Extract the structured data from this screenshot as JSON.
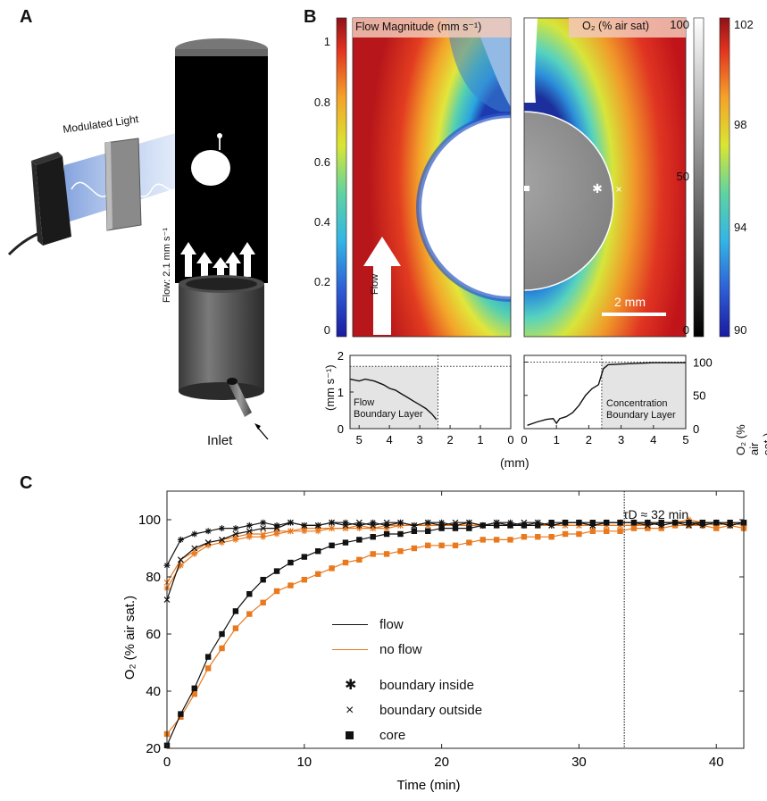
{
  "panel_a": {
    "letter": "A",
    "modulated_light_label": "Modulated Light",
    "flow_label": "Flow: 2.1 mm s⁻¹",
    "inlet_label": "Inlet"
  },
  "panel_b": {
    "letter": "B",
    "flow_map_title": "Flow Magnitude (mm s⁻¹)",
    "o2_map_title": "O₂ (% air sat)",
    "flow_colorbar_ticks": [
      "1",
      "0.8",
      "0.6",
      "0.4",
      "0.2",
      "0"
    ],
    "gray_colorbar_ticks": [
      "100",
      "50",
      "0"
    ],
    "o2_colorbar_ticks": [
      "102",
      "98",
      "94",
      "90"
    ],
    "flow_arrow_label": "Flow",
    "scalebar_label": "2 mm",
    "flow_profile": {
      "ylabel": "(mm s⁻¹)",
      "yticks": [
        "2",
        "1",
        "0"
      ],
      "xticks": [
        "5",
        "4",
        "3",
        "2",
        "1",
        "0"
      ],
      "annotation_line1": "Flow",
      "annotation_line2": "Boundary Layer"
    },
    "o2_profile": {
      "ylabel": "O₂ (% air sat.)",
      "yticks": [
        "100",
        "50",
        "0"
      ],
      "xticks": [
        "0",
        "1",
        "2",
        "3",
        "4",
        "5"
      ],
      "annotation_line1": "Concentration",
      "annotation_line2": "Boundary Layer"
    },
    "shared_xlabel": "(mm)"
  },
  "panel_c": {
    "letter": "C",
    "tau_label": "τD ≈ 32 min",
    "legend": {
      "flow": "flow",
      "no_flow": "no flow",
      "boundary_inside": "boundary inside",
      "boundary_outside": "boundary outside",
      "core": "core"
    }
  },
  "chart_data": [
    {
      "type": "line",
      "panel": "C",
      "xlabel": "Time (min)",
      "ylabel": "O₂ (% air sat.)",
      "xlim": [
        0,
        42
      ],
      "ylim": [
        20,
        110
      ],
      "xticks": [
        0,
        10,
        20,
        30,
        40
      ],
      "yticks": [
        20,
        40,
        60,
        80,
        100
      ],
      "vline_x": 33.3,
      "colors": {
        "flow": "#111111",
        "no flow": "#e8791e"
      },
      "series": [
        {
          "name": "flow · boundary inside",
          "marker": "asterisk",
          "color": "#111111",
          "x": [
            0,
            1,
            2,
            3,
            4,
            5,
            6,
            7,
            8,
            9,
            10,
            11,
            12,
            13,
            14,
            15,
            16,
            17,
            18,
            19,
            20,
            21,
            22,
            23,
            24,
            25,
            26,
            27,
            28,
            29,
            30,
            31,
            32,
            33,
            34,
            35,
            36,
            37,
            38,
            39,
            40,
            41,
            42
          ],
          "y": [
            84,
            93,
            95,
            96,
            97,
            97,
            98,
            99,
            98,
            99,
            98,
            98,
            99,
            99,
            98,
            99,
            98,
            99,
            98,
            99,
            99,
            98,
            99,
            98,
            99,
            99,
            98,
            99,
            98,
            99,
            99,
            98,
            99,
            99,
            99,
            99,
            98,
            99,
            99,
            98,
            99,
            98,
            99
          ]
        },
        {
          "name": "flow · boundary outside",
          "marker": "x",
          "color": "#111111",
          "x": [
            0,
            1,
            2,
            3,
            4,
            5,
            6,
            7,
            8,
            9,
            10,
            11,
            12,
            13,
            14,
            15,
            16,
            17,
            18,
            19,
            20,
            21,
            22,
            23,
            24,
            25,
            26,
            27,
            28,
            29,
            30,
            31,
            32,
            33,
            34,
            35,
            36,
            37,
            38,
            39,
            40,
            41,
            42
          ],
          "y": [
            72,
            86,
            90,
            92,
            93,
            95,
            96,
            97,
            97,
            99,
            98,
            98,
            99,
            98,
            99,
            98,
            99,
            99,
            98,
            99,
            98,
            99,
            99,
            98,
            99,
            98,
            99,
            99,
            98,
            99,
            99,
            98,
            99,
            99,
            99,
            98,
            99,
            99,
            98,
            99,
            99,
            98,
            99
          ]
        },
        {
          "name": "flow · core",
          "marker": "square",
          "color": "#111111",
          "x": [
            0,
            1,
            2,
            3,
            4,
            5,
            6,
            7,
            8,
            9,
            10,
            11,
            12,
            13,
            14,
            15,
            16,
            17,
            18,
            19,
            20,
            21,
            22,
            23,
            24,
            25,
            26,
            27,
            28,
            29,
            30,
            31,
            32,
            33,
            34,
            35,
            36,
            37,
            38,
            39,
            40,
            41,
            42
          ],
          "y": [
            21,
            32,
            41,
            52,
            60,
            68,
            74,
            79,
            82,
            85,
            87,
            89,
            91,
            92,
            93,
            94,
            95,
            95,
            96,
            96,
            97,
            97,
            97,
            98,
            98,
            98,
            98,
            98,
            99,
            99,
            99,
            99,
            99,
            99,
            99,
            99,
            99,
            99,
            99,
            99,
            99,
            99,
            99
          ]
        },
        {
          "name": "no flow · boundary inside",
          "marker": "asterisk",
          "color": "#e8791e",
          "x": [
            0,
            1,
            2,
            3,
            4,
            5,
            6,
            7,
            8,
            9,
            10,
            11,
            12,
            13,
            14,
            15,
            16,
            17,
            18,
            19,
            20,
            21,
            22,
            23,
            24,
            25,
            26,
            27,
            28,
            29,
            30,
            31,
            32,
            33,
            34,
            35,
            36,
            37,
            38,
            39,
            40,
            41,
            42
          ],
          "y": [
            76,
            84,
            88,
            91,
            92,
            93,
            94,
            94,
            95,
            96,
            96,
            96,
            97,
            97,
            97,
            97,
            97,
            98,
            98,
            98,
            98,
            98,
            98,
            98,
            98,
            98,
            98,
            98,
            98,
            98,
            98,
            98,
            98,
            98,
            98,
            98,
            99,
            99,
            100,
            99,
            98,
            99,
            98
          ]
        },
        {
          "name": "no flow · boundary outside",
          "marker": "x",
          "color": "#e8791e",
          "x": [
            0,
            1,
            2,
            3,
            4,
            5,
            6,
            7,
            8,
            9,
            10,
            11,
            12,
            13,
            14,
            15,
            16,
            17,
            18,
            19,
            20,
            21,
            22,
            23,
            24,
            25,
            26,
            27,
            28,
            29,
            30,
            31,
            32,
            33,
            34,
            35,
            36,
            37,
            38,
            39,
            40,
            41,
            42
          ],
          "y": [
            78,
            86,
            89,
            92,
            93,
            94,
            95,
            95,
            96,
            96,
            97,
            97,
            97,
            97,
            98,
            97,
            98,
            98,
            98,
            98,
            98,
            98,
            98,
            98,
            98,
            98,
            98,
            98,
            98,
            98,
            98,
            98,
            98,
            98,
            98,
            99,
            98,
            99,
            99,
            99,
            98,
            99,
            98
          ]
        },
        {
          "name": "no flow · core",
          "marker": "square",
          "color": "#e8791e",
          "x": [
            0,
            1,
            2,
            3,
            4,
            5,
            6,
            7,
            8,
            9,
            10,
            11,
            12,
            13,
            14,
            15,
            16,
            17,
            18,
            19,
            20,
            21,
            22,
            23,
            24,
            25,
            26,
            27,
            28,
            29,
            30,
            31,
            32,
            33,
            34,
            35,
            36,
            37,
            38,
            39,
            40,
            41,
            42
          ],
          "y": [
            25,
            31,
            39,
            48,
            55,
            62,
            67,
            71,
            75,
            77,
            79,
            81,
            83,
            85,
            86,
            88,
            88,
            89,
            90,
            91,
            91,
            91,
            92,
            93,
            93,
            93,
            94,
            94,
            94,
            95,
            95,
            96,
            96,
            96,
            97,
            97,
            97,
            98,
            98,
            98,
            97,
            98,
            97
          ]
        }
      ]
    },
    {
      "type": "line",
      "panel": "B-flow-profile",
      "xlabel": "(mm)",
      "ylabel": "(mm s⁻¹)",
      "xlim": [
        5.3,
        0
      ],
      "ylim": [
        0,
        2
      ],
      "dotted_hline_y": 1.7,
      "dotted_vline_x": 2.4,
      "x": [
        5.3,
        5.0,
        4.8,
        4.5,
        4.2,
        4.0,
        3.8,
        3.6,
        3.4,
        3.2,
        3.0,
        2.8,
        2.6,
        2.45
      ],
      "y": [
        1.35,
        1.3,
        1.35,
        1.3,
        1.2,
        1.1,
        1.05,
        0.95,
        0.85,
        0.75,
        0.65,
        0.55,
        0.4,
        0.25
      ]
    },
    {
      "type": "line",
      "panel": "B-o2-profile",
      "xlabel": "(mm)",
      "ylabel": "O₂ (% air sat.)",
      "xlim": [
        0,
        5
      ],
      "ylim": [
        0,
        110
      ],
      "dotted_hline_y": 100,
      "dotted_vline_x": 2.4,
      "x": [
        0.1,
        0.4,
        0.7,
        0.9,
        1.0,
        1.1,
        1.3,
        1.5,
        1.7,
        1.9,
        2.1,
        2.3,
        2.45,
        2.6,
        3.0,
        3.5,
        4.0,
        4.5,
        5.0
      ],
      "y": [
        5,
        10,
        14,
        15,
        8,
        15,
        18,
        24,
        35,
        50,
        60,
        66,
        90,
        96,
        97,
        98,
        99,
        99,
        99
      ]
    }
  ]
}
